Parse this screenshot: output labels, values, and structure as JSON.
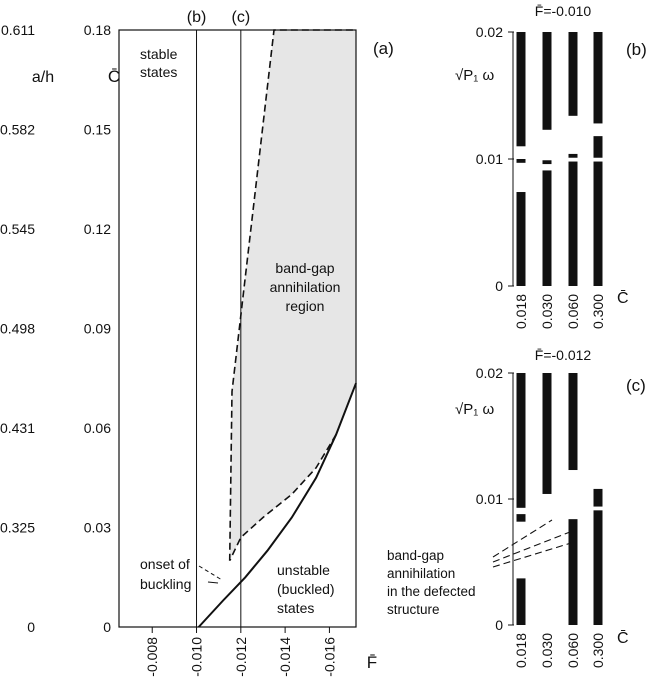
{
  "chart_data": [
    {
      "panel": "(a)",
      "type": "line",
      "x": {
        "label": "F̄",
        "range": [
          -0.0065,
          -0.0172
        ],
        "ticks": [
          "-0.008",
          "-0.010",
          "-0.012",
          "-0.014",
          "-0.016"
        ],
        "tick_values": [
          -0.008,
          -0.01,
          -0.012,
          -0.014,
          -0.016
        ]
      },
      "y": {
        "label": "C̄",
        "range": [
          0,
          0.18
        ],
        "ticks": [
          "0",
          "0.03",
          "0.06",
          "0.09",
          "0.12",
          "0.15",
          "0.18"
        ],
        "tick_values": [
          0,
          0.03,
          0.06,
          0.09,
          0.12,
          0.15,
          0.18
        ]
      },
      "y_secondary": {
        "label": "a/h",
        "ticks": [
          "0",
          "0.325",
          "0.431",
          "0.498",
          "0.545",
          "0.582",
          "0.611"
        ]
      },
      "vertical_lines": [
        {
          "label": "(b)",
          "x": -0.01
        },
        {
          "label": "(c)",
          "x": -0.012
        }
      ],
      "stability_boundary": {
        "style": "solid",
        "points": [
          [
            -0.0101,
            0
          ],
          [
            -0.0112,
            0.008
          ],
          [
            -0.0122,
            0.015
          ],
          [
            -0.0132,
            0.023
          ],
          [
            -0.0143,
            0.033
          ],
          [
            -0.0154,
            0.045
          ],
          [
            -0.0163,
            0.058
          ],
          [
            -0.0172,
            0.0735
          ]
        ]
      },
      "annihilation_region": {
        "style": "dashed-fill",
        "fill": "#e6e6e6",
        "points": [
          [
            -0.0115,
            0.02
          ],
          [
            -0.0116,
            0.071
          ],
          [
            -0.0135,
            0.18
          ],
          [
            -0.0172,
            0.18
          ],
          [
            -0.0172,
            0.0735
          ],
          [
            -0.0163,
            0.058
          ],
          [
            -0.0154,
            0.048
          ],
          [
            -0.0143,
            0.04
          ],
          [
            -0.013,
            0.033
          ],
          [
            -0.012,
            0.027
          ],
          [
            -0.0115,
            0.02
          ]
        ]
      },
      "annotations": {
        "panel_label": "(a)",
        "stable": [
          "stable",
          "states"
        ],
        "region": [
          "band-gap",
          "annihilation",
          "region"
        ],
        "unstable": [
          "unstable",
          "(buckled)",
          "states"
        ],
        "onset": [
          "onset of",
          "buckling"
        ]
      }
    },
    {
      "panel": "(b)",
      "type": "bar",
      "title": "F̄=-0.010",
      "panel_label": "(b)",
      "ylabel": "√P₁ ω",
      "xlabel": "C̄",
      "categories": [
        "0.018",
        "0.030",
        "0.060",
        "0.300"
      ],
      "y_ticks": [
        "0",
        "0.01",
        "0.02"
      ],
      "ylim": [
        0,
        0.02
      ],
      "bands": [
        [
          [
            0,
            0.0074
          ],
          [
            0.0097,
            0.01
          ],
          [
            0.011,
            0.02
          ]
        ],
        [
          [
            0,
            0.0091
          ],
          [
            0.0096,
            0.0099
          ],
          [
            0.0123,
            0.02
          ]
        ],
        [
          [
            0,
            0.0098
          ],
          [
            0.0101,
            0.0104
          ],
          [
            0.0134,
            0.02
          ]
        ],
        [
          [
            0,
            0.0098
          ],
          [
            0.0101,
            0.0118
          ],
          [
            0.0128,
            0.02
          ]
        ]
      ]
    },
    {
      "panel": "(c)",
      "type": "bar",
      "title": "F̄=-0.012",
      "panel_label": "(c)",
      "ylabel": "√P₁ ω",
      "xlabel": "C̄",
      "categories": [
        "0.018",
        "0.030",
        "0.060",
        "0.300"
      ],
      "y_ticks": [
        "0",
        "0.01",
        "0.02"
      ],
      "ylim": [
        0,
        0.02
      ],
      "bands": [
        [
          [
            0,
            0.0037
          ],
          [
            0.0082,
            0.0088
          ],
          [
            0.0093,
            0.02
          ]
        ],
        [
          [
            0.0104,
            0.02
          ]
        ],
        [
          [
            0,
            0.0084
          ],
          [
            0.0123,
            0.02
          ]
        ],
        [
          [
            0,
            0.0091
          ],
          [
            0.0094,
            0.0108
          ]
        ]
      ],
      "annotation": [
        "band-gap",
        "annihilation",
        "in the defected",
        "structure"
      ]
    }
  ]
}
